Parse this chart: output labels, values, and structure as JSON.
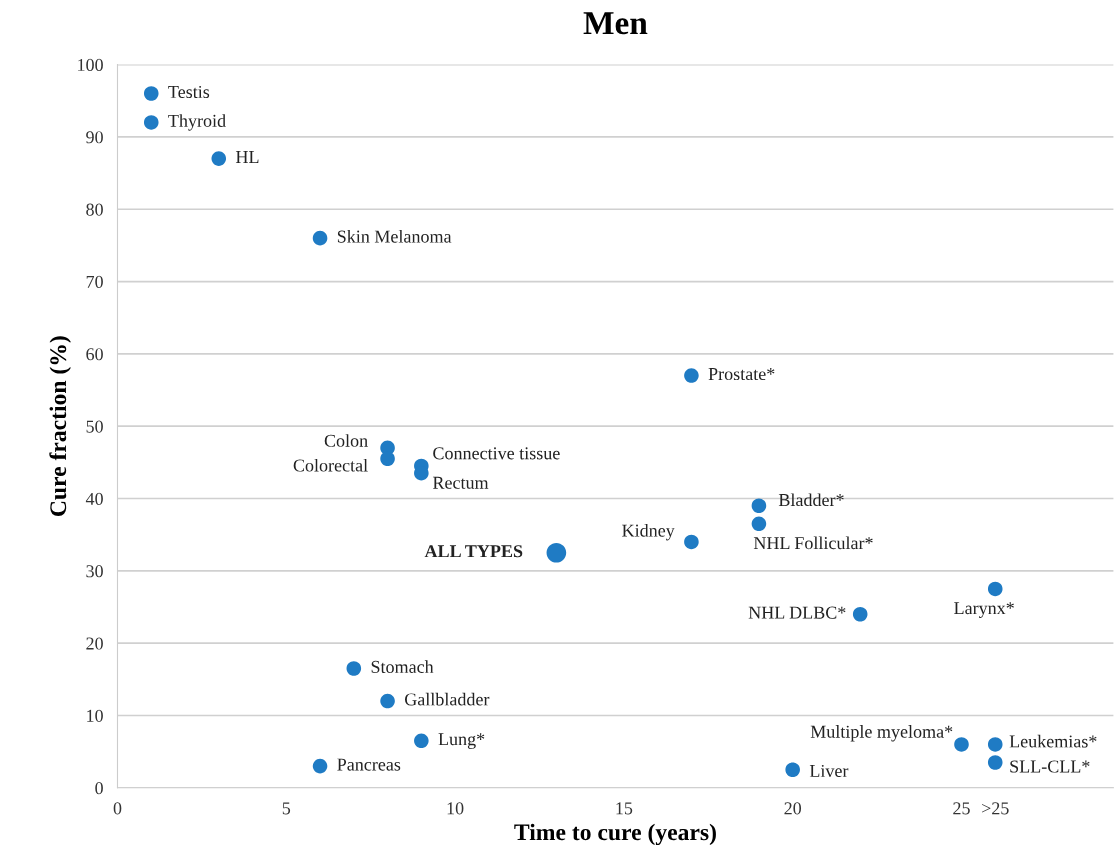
{
  "chart_data": {
    "type": "scatter",
    "title": "Men",
    "xlabel": "Time to cure (years)",
    "ylabel": "Cure fraction (%)",
    "series": [
      {
        "color": "#1f7bc4",
        "x": [
          1,
          1,
          3,
          6,
          17,
          8,
          8,
          9,
          9,
          17,
          19,
          19,
          22,
          26,
          7,
          8,
          9,
          6,
          25,
          20,
          26,
          26
        ],
        "values": [
          96,
          92,
          87,
          76,
          57,
          47,
          45.5,
          44.5,
          43.5,
          34,
          39,
          36.5,
          24,
          27.5,
          16.5,
          12,
          6.5,
          3,
          6,
          2.5,
          6,
          3.5
        ]
      },
      {
        "color": "#1f7bc4",
        "x": [
          13
        ],
        "values": [
          32.5
        ]
      }
    ],
    "annotations": [
      {
        "text": "Testis",
        "x": 1,
        "y": 96
      },
      {
        "text": "Thyroid",
        "x": 1,
        "y": 92
      },
      {
        "text": "HL",
        "x": 3,
        "y": 87
      },
      {
        "text": "Skin Melanoma",
        "x": 6,
        "y": 76
      },
      {
        "text": "Prostate*",
        "x": 17,
        "y": 57
      },
      {
        "text": "Colon",
        "x": 8,
        "y": 47
      },
      {
        "text": "Colorectal",
        "x": 8,
        "y": 45.5
      },
      {
        "text": "Connective tissue",
        "x": 9,
        "y": 44.5
      },
      {
        "text": "Rectum",
        "x": 9,
        "y": 43.5
      },
      {
        "text": "ALL TYPES",
        "x": 13,
        "y": 32.5
      },
      {
        "text": "Kidney",
        "x": 17,
        "y": 34
      },
      {
        "text": "Bladder*",
        "x": 19,
        "y": 39
      },
      {
        "text": "NHL Follicular*",
        "x": 19,
        "y": 36.5
      },
      {
        "text": "NHL DLBC*",
        "x": 22,
        "y": 24
      },
      {
        "text": "Larynx*",
        "x": 26,
        "y": 27.5
      },
      {
        "text": "Stomach",
        "x": 7,
        "y": 16.5
      },
      {
        "text": "Gallbladder",
        "x": 8,
        "y": 12
      },
      {
        "text": "Lung*",
        "x": 9,
        "y": 6.5
      },
      {
        "text": "Pancreas",
        "x": 6,
        "y": 3
      },
      {
        "text": "Multiple myeloma*",
        "x": 25,
        "y": 6
      },
      {
        "text": "Liver",
        "x": 20,
        "y": 2.5
      },
      {
        "text": "Leukemias*",
        "x": 26,
        "y": 6
      },
      {
        "text": "SLL-CLL*",
        "x": 26,
        "y": 3.5
      }
    ],
    "xlim": [
      0,
      29.5
    ],
    "xticks": [
      0,
      5,
      10,
      15,
      20,
      25,
      {
        "value": 26,
        "label": ">25"
      }
    ],
    "ylim": [
      0,
      100
    ],
    "yticks": [
      0,
      10,
      20,
      30,
      40,
      50,
      60,
      70,
      80,
      90,
      100
    ],
    "grid": "y",
    "marker": "circle",
    "legend": false
  }
}
